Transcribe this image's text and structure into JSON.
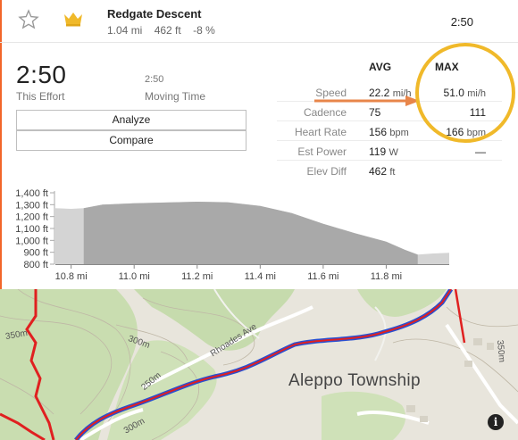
{
  "segment": {
    "name": "Redgate Descent",
    "distance": "1.04 mi",
    "elevation": "462 ft",
    "grade": "-8 %",
    "time": "2:50"
  },
  "effort": {
    "time": "2:50",
    "time_label": "This Effort",
    "moving_time": "2:50",
    "moving_label": "Moving Time"
  },
  "buttons": {
    "analyze": "Analyze",
    "compare": "Compare"
  },
  "stats": {
    "avg_header": "AVG",
    "max_header": "MAX",
    "rows": [
      {
        "label": "Speed",
        "avg": "22.2",
        "avg_unit": "mi/h",
        "max": "51.0",
        "max_unit": "mi/h"
      },
      {
        "label": "Cadence",
        "avg": "75",
        "avg_unit": "",
        "max": "111",
        "max_unit": ""
      },
      {
        "label": "Heart Rate",
        "avg": "156",
        "avg_unit": "bpm",
        "max": "166",
        "max_unit": "bpm"
      },
      {
        "label": "Est Power",
        "avg": "119",
        "avg_unit": "W",
        "max": "—",
        "max_unit": ""
      },
      {
        "label": "Elev Diff",
        "avg": "462",
        "avg_unit": "ft",
        "max": "",
        "max_unit": ""
      }
    ]
  },
  "elevation_chart": {
    "y_ticks": [
      "1,400 ft",
      "1,300 ft",
      "1,200 ft",
      "1,100 ft",
      "1,000 ft",
      "900 ft",
      "800 ft"
    ],
    "x_ticks": [
      "10.8 mi",
      "11.0 mi",
      "11.2 mi",
      "11.4 mi",
      "11.6 mi",
      "11.8 mi"
    ],
    "ylim": [
      800,
      1400
    ],
    "xlim": [
      10.75,
      12.0
    ],
    "segment_range": [
      10.84,
      11.9
    ],
    "profile": [
      [
        10.75,
        1270
      ],
      [
        10.8,
        1265
      ],
      [
        10.84,
        1270
      ],
      [
        10.9,
        1300
      ],
      [
        11.0,
        1312
      ],
      [
        11.1,
        1318
      ],
      [
        11.2,
        1325
      ],
      [
        11.3,
        1320
      ],
      [
        11.4,
        1290
      ],
      [
        11.5,
        1230
      ],
      [
        11.6,
        1140
      ],
      [
        11.7,
        1060
      ],
      [
        11.8,
        990
      ],
      [
        11.86,
        920
      ],
      [
        11.9,
        880
      ],
      [
        11.95,
        890
      ],
      [
        12.0,
        895
      ]
    ]
  },
  "map": {
    "place": "Aleppo Township",
    "road_label": "Rhoades Ave",
    "contours": [
      "350m",
      "300m",
      "250m",
      "300m",
      "350m"
    ],
    "info": "i"
  },
  "colors": {
    "accent": "#f2662a",
    "highlight": "#f0b92a",
    "route_red": "#e02020",
    "route_blue": "#2a4fd0",
    "chart_fill": "#a9a9a9",
    "chart_fill_light": "#d4d4d4"
  }
}
